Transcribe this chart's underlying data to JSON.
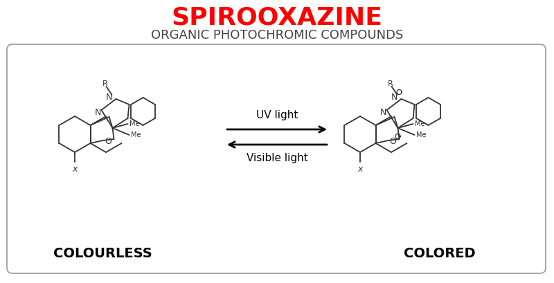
{
  "title": "SPIROOXAZINE",
  "subtitle": "ORGANIC PHOTOCHROMIC COMPOUNDS",
  "title_color": "#FF0000",
  "subtitle_color": "#444444",
  "label_left": "COLOURLESS",
  "label_right": "COLORED",
  "arrow_up_label": "UV light",
  "arrow_down_label": "Visible light",
  "bg_color": "#FFFFFF",
  "box_color": "#999999",
  "molecule_color": "#333333",
  "title_fontsize": 26,
  "subtitle_fontsize": 13,
  "label_fontsize": 14,
  "arrow_fontsize": 11
}
